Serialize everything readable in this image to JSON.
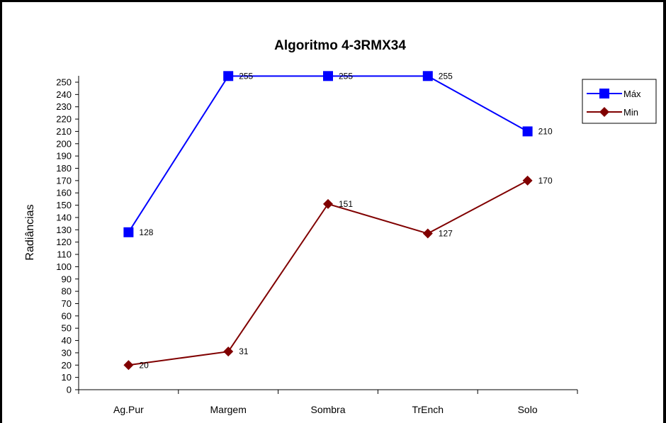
{
  "chart_data": {
    "type": "line",
    "title": "Algoritmo 4-3RMX34",
    "xlabel": "",
    "ylabel": "Radiâncias",
    "categories": [
      "Ag.Pur",
      "Margem",
      "Sombra",
      "TrEnch",
      "Solo"
    ],
    "ylim": [
      0,
      250
    ],
    "yticks": [
      0,
      10,
      20,
      30,
      40,
      50,
      60,
      70,
      80,
      90,
      100,
      110,
      120,
      130,
      140,
      150,
      160,
      170,
      180,
      190,
      200,
      210,
      220,
      230,
      240,
      250
    ],
    "grid": false,
    "legend_position": "right",
    "series": [
      {
        "name": "Máx",
        "values": [
          128,
          255,
          255,
          255,
          210
        ],
        "color": "#0000ff",
        "marker": "square"
      },
      {
        "name": "Min",
        "values": [
          20,
          31,
          151,
          127,
          170
        ],
        "color": "#800000",
        "marker": "diamond"
      }
    ]
  }
}
